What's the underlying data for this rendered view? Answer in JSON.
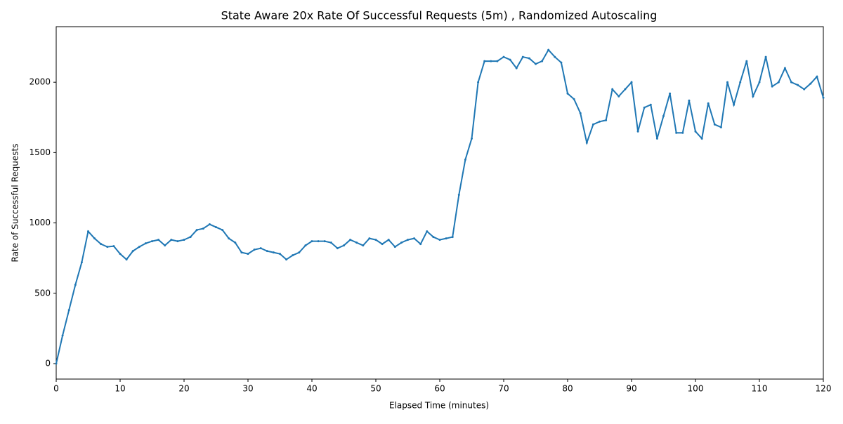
{
  "chart_data": {
    "type": "line",
    "title": "State Aware 20x Rate Of Successful Requests (5m) , Randomized Autoscaling",
    "x_label": "Elapsed Time (minutes)",
    "y_label": "Rate of Successful Requests",
    "x": [
      0,
      1,
      2,
      3,
      4,
      5,
      6,
      7,
      8,
      9,
      10,
      11,
      12,
      13,
      14,
      15,
      16,
      17,
      18,
      19,
      20,
      21,
      22,
      23,
      24,
      25,
      26,
      27,
      28,
      29,
      30,
      31,
      32,
      33,
      34,
      35,
      36,
      37,
      38,
      39,
      40,
      41,
      42,
      43,
      44,
      45,
      46,
      47,
      48,
      49,
      50,
      51,
      52,
      53,
      54,
      55,
      56,
      57,
      58,
      59,
      60,
      61,
      62,
      63,
      64,
      65,
      66,
      67,
      68,
      69,
      70,
      71,
      72,
      73,
      74,
      75,
      76,
      77,
      78,
      79,
      80,
      81,
      82,
      83,
      84,
      85,
      86,
      87,
      88,
      89,
      90,
      91,
      92,
      93,
      94,
      95,
      96,
      97,
      98,
      99,
      100,
      101,
      102,
      103,
      104,
      105,
      106,
      107,
      108,
      109,
      110,
      111,
      112,
      113,
      114,
      115,
      116,
      117,
      118,
      119,
      120
    ],
    "series": [
      {
        "color": "#1f77b4",
        "values": [
          0,
          200,
          380,
          560,
          720,
          940,
          890,
          850,
          830,
          835,
          780,
          740,
          800,
          830,
          855,
          870,
          880,
          840,
          880,
          870,
          880,
          900,
          950,
          960,
          990,
          970,
          950,
          890,
          860,
          790,
          780,
          810,
          820,
          800,
          790,
          780,
          740,
          770,
          790,
          840,
          870,
          870,
          870,
          860,
          820,
          840,
          880,
          860,
          840,
          890,
          880,
          850,
          880,
          830,
          860,
          880,
          890,
          850,
          940,
          900,
          880,
          890,
          900,
          1200,
          1450,
          1600,
          2000,
          2150,
          2150,
          2150,
          2180,
          2160,
          2100,
          2180,
          2170,
          2130,
          2150,
          2230,
          2180,
          2140,
          1920,
          1880,
          1780,
          1570,
          1700,
          1720,
          1730,
          1950,
          1900,
          1950,
          2000,
          1650,
          1820,
          1840,
          1600,
          1760,
          1920,
          1640,
          1640,
          1870,
          1650,
          1600,
          1850,
          1700,
          1680,
          2000,
          1840,
          2000,
          2150,
          1900,
          2000,
          2180,
          1970,
          2000,
          2100,
          2000,
          1980,
          1950,
          1990,
          2040,
          1890
        ]
      }
    ],
    "xlim": [
      0,
      120
    ],
    "xticks": [
      0,
      10,
      20,
      30,
      40,
      50,
      60,
      70,
      80,
      90,
      100,
      110,
      120
    ],
    "ylim": [
      -110,
      2395
    ],
    "yticks": [
      0,
      500,
      1000,
      1500,
      2000
    ],
    "grid": false
  }
}
